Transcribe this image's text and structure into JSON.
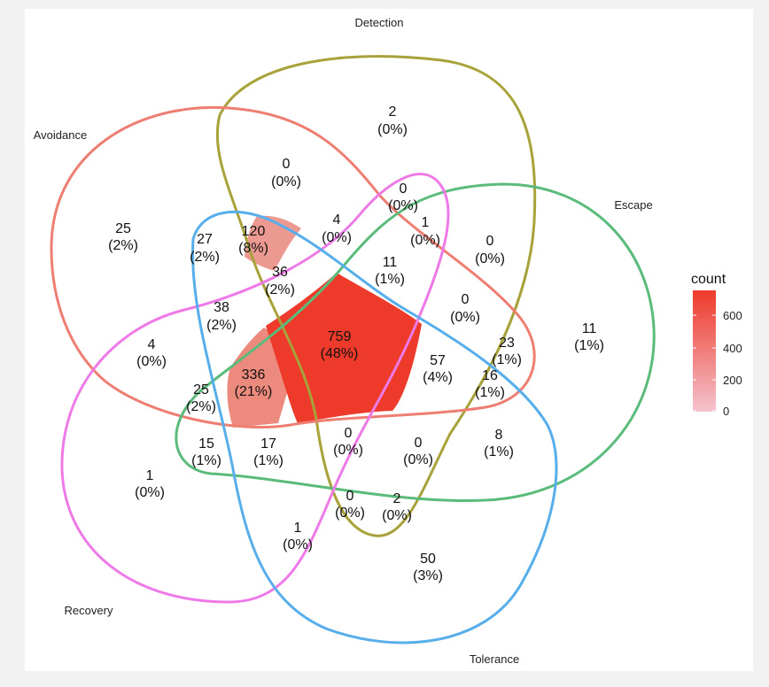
{
  "sets": {
    "detection": "Detection",
    "avoidance": "Avoidance",
    "escape": "Escape",
    "recovery": "Recovery",
    "tolerance": "Tolerance"
  },
  "legend": {
    "title": "count",
    "ticks": [
      "600",
      "400",
      "200",
      "0"
    ],
    "color_low": "#f4c2cd",
    "color_high": "#ee3a2a"
  },
  "set_colors": {
    "detection": "#a8a23a",
    "avoidance": "#ee7d72",
    "escape": "#5bbb7a",
    "recovery": "#ee7ae8",
    "tolerance": "#57aeea"
  },
  "regions": [
    {
      "id": "d",
      "count": "2",
      "pct": "(0%)"
    },
    {
      "id": "ad",
      "count": "0",
      "pct": "(0%)"
    },
    {
      "id": "dr",
      "count": "0",
      "pct": "(0%)"
    },
    {
      "id": "a",
      "count": "25",
      "pct": "(2%)"
    },
    {
      "id": "adr",
      "count": "4",
      "pct": "(0%)"
    },
    {
      "id": "dre",
      "count": "1",
      "pct": "(0%)"
    },
    {
      "id": "de",
      "count": "0",
      "pct": "(0%)"
    },
    {
      "id": "at",
      "count": "27",
      "pct": "(2%)"
    },
    {
      "id": "adt",
      "count": "120",
      "pct": "(8%)"
    },
    {
      "id": "adre",
      "count": "11",
      "pct": "(1%)"
    },
    {
      "id": "adrt",
      "count": "36",
      "pct": "(2%)"
    },
    {
      "id": "e",
      "count": "11",
      "pct": "(1%)"
    },
    {
      "id": "art",
      "count": "38",
      "pct": "(2%)"
    },
    {
      "id": "dey",
      "count": "0",
      "pct": "(0%)"
    },
    {
      "id": "ar",
      "count": "4",
      "pct": "(0%)"
    },
    {
      "id": "all",
      "count": "759",
      "pct": "(48%)"
    },
    {
      "id": "ae",
      "count": "23",
      "pct": "(1%)"
    },
    {
      "id": "aret",
      "count": "336",
      "pct": "(21%)"
    },
    {
      "id": "adet",
      "count": "57",
      "pct": "(4%)"
    },
    {
      "id": "aet",
      "count": "16",
      "pct": "(1%)"
    },
    {
      "id": "are",
      "count": "25",
      "pct": "(2%)"
    },
    {
      "id": "re",
      "count": "15",
      "pct": "(1%)"
    },
    {
      "id": "ret",
      "count": "17",
      "pct": "(1%)"
    },
    {
      "id": "dret",
      "count": "0",
      "pct": "(0%)"
    },
    {
      "id": "det",
      "count": "0",
      "pct": "(0%)"
    },
    {
      "id": "et",
      "count": "8",
      "pct": "(1%)"
    },
    {
      "id": "r",
      "count": "1",
      "pct": "(0%)"
    },
    {
      "id": "drt",
      "count": "0",
      "pct": "(0%)"
    },
    {
      "id": "dt",
      "count": "2",
      "pct": "(0%)"
    },
    {
      "id": "rt",
      "count": "1",
      "pct": "(0%)"
    },
    {
      "id": "t",
      "count": "50",
      "pct": "(3%)"
    }
  ]
}
